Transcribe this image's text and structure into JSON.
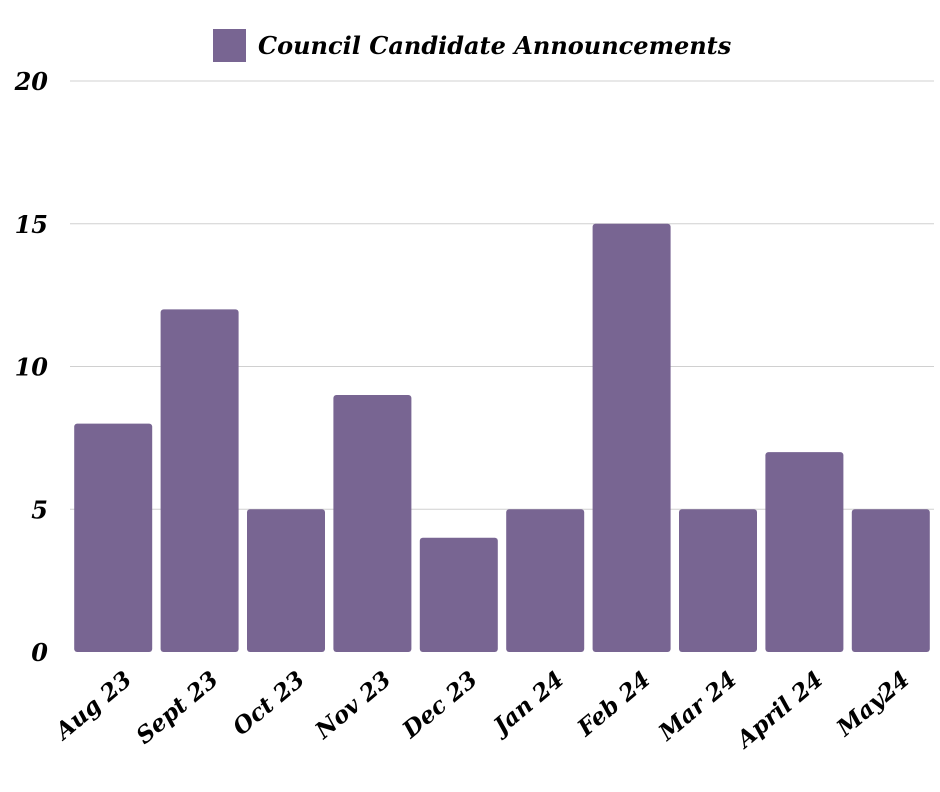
{
  "chart_data": {
    "type": "bar",
    "categories": [
      "Aug 23",
      "Sept 23",
      "Oct 23",
      "Nov 23",
      "Dec 23",
      "Jan 24",
      "Feb 24",
      "Mar 24",
      "April 24",
      "May24"
    ],
    "series": [
      {
        "name": "Council Candidate Announcements",
        "values": [
          8,
          12,
          5,
          9,
          4,
          5,
          15,
          5,
          7,
          5
        ],
        "color": "#786592"
      }
    ],
    "title": "",
    "xlabel": "",
    "ylabel": "",
    "ylim": [
      0,
      20
    ],
    "yticks": [
      "0",
      "5",
      "10",
      "15",
      "20"
    ],
    "grid": true,
    "legend_position": "top-center",
    "colors": {
      "bar": "#786592",
      "grid": "#d0d0d0",
      "text": "#000000"
    }
  }
}
